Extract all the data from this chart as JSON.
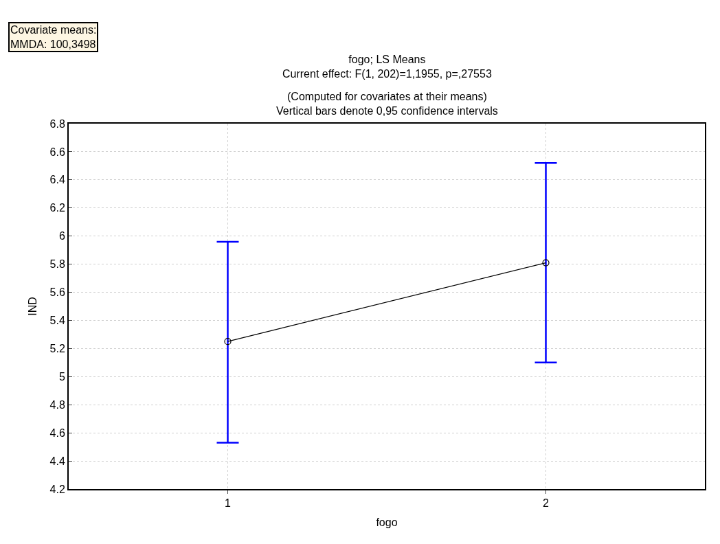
{
  "chart_data": {
    "type": "line",
    "title": "fogo; LS Means\nCurrent effect: F(1, 202)=1,1955, p=,27553",
    "subtitle": "(Computed for covariates at their means)\nVertical bars denote 0,95 confidence intervals",
    "xlabel": "fogo",
    "ylabel": "IND",
    "annotations": [
      "Covariate means:\nMMDA: 100,3498"
    ],
    "categories": [
      "1",
      "2"
    ],
    "series": [
      {
        "color": "#000000",
        "values": [
          5.25,
          5.81
        ],
        "errors": [
          [
            4.53,
            5.96
          ],
          [
            5.1,
            6.52
          ]
        ]
      }
    ],
    "ylim": [
      4.2,
      6.8
    ],
    "yticks": [
      4.2,
      4.4,
      4.6,
      4.8,
      5,
      5.2,
      5.4,
      5.6,
      5.8,
      6,
      6.2,
      6.4,
      6.6,
      6.8
    ],
    "grid": true,
    "marker": "circle",
    "line_style": "solid"
  }
}
